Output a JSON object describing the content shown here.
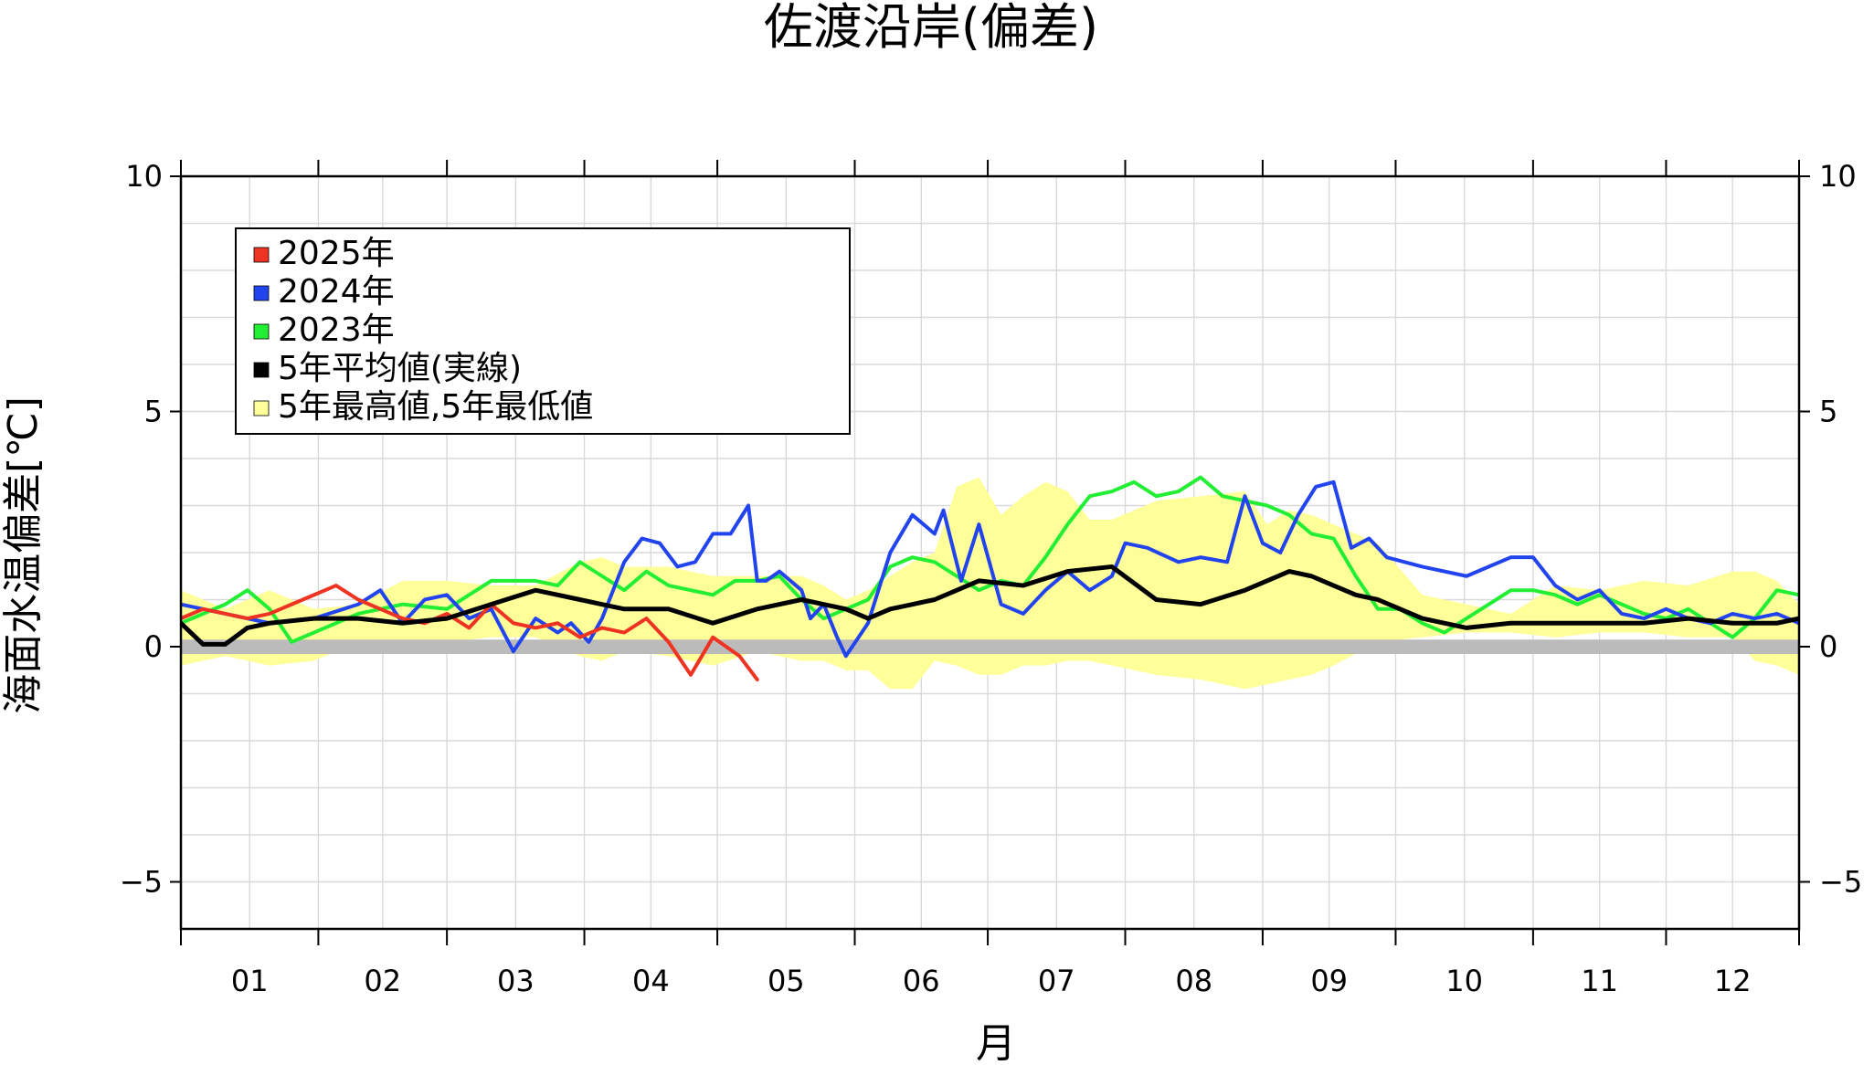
{
  "chart_data": {
    "type": "line",
    "title": "佐渡沿岸(偏差)",
    "xlabel": "月",
    "ylabel": "海面水温偏差[℃]",
    "ylim": [
      -6,
      10
    ],
    "xlim": [
      0,
      365
    ],
    "y_ticks": [
      -5,
      0,
      5,
      10
    ],
    "y_tick_labels": [
      "−5",
      "0",
      "5",
      "10"
    ],
    "month_labels": [
      "01",
      "02",
      "03",
      "04",
      "05",
      "06",
      "07",
      "08",
      "09",
      "10",
      "11",
      "12"
    ],
    "month_starts": [
      0,
      31,
      60,
      91,
      121,
      152,
      182,
      213,
      244,
      274,
      305,
      335,
      365
    ],
    "grid": true,
    "legend_position": "top-left",
    "zero_band": [
      0,
      0.15
    ],
    "colors": {
      "y2025": "#ee3322",
      "y2024": "#2244ee",
      "y2023": "#22ee33",
      "mean": "#000000",
      "range": "#ffff99",
      "zero_band": "#bbbbbb"
    },
    "legend": [
      {
        "label": "2025年",
        "color": "#ee3322"
      },
      {
        "label": "2024年",
        "color": "#2244ee"
      },
      {
        "label": "2023年",
        "color": "#22ee33"
      },
      {
        "label": "5年平均値(実線)",
        "color": "#000000"
      },
      {
        "label": "5年最高値,5年最低値",
        "color": "#ffff99"
      }
    ],
    "series": [
      {
        "name": "2025年",
        "color": "#ee3322",
        "x": [
          0,
          5,
          10,
          15,
          20,
          25,
          30,
          35,
          40,
          45,
          50,
          55,
          60,
          65,
          70,
          75,
          80,
          85,
          90,
          95,
          100,
          105,
          110,
          115,
          120,
          126,
          130
        ],
        "values": [
          0.6,
          0.8,
          0.7,
          0.6,
          0.7,
          0.9,
          1.1,
          1.3,
          1.0,
          0.8,
          0.6,
          0.5,
          0.7,
          0.4,
          0.9,
          0.5,
          0.4,
          0.5,
          0.2,
          0.4,
          0.3,
          0.6,
          0.1,
          -0.6,
          0.2,
          -0.2,
          -0.7
        ]
      },
      {
        "name": "2024年",
        "color": "#2244ee",
        "x": [
          0,
          10,
          20,
          30,
          40,
          45,
          50,
          55,
          60,
          65,
          70,
          75,
          80,
          85,
          88,
          92,
          95,
          100,
          104,
          108,
          112,
          116,
          120,
          124,
          128,
          130,
          132,
          135,
          140,
          142,
          145,
          148,
          150,
          155,
          160,
          165,
          170,
          172,
          176,
          180,
          185,
          190,
          195,
          200,
          205,
          210,
          213,
          218,
          225,
          230,
          236,
          240,
          244,
          248,
          252,
          256,
          260,
          264,
          268,
          272,
          280,
          290,
          300,
          305,
          310,
          315,
          320,
          325,
          330,
          335,
          340,
          345,
          350,
          355,
          360,
          365
        ],
        "values": [
          0.9,
          0.7,
          0.5,
          0.6,
          0.9,
          1.2,
          0.5,
          1.0,
          1.1,
          0.6,
          0.8,
          -0.1,
          0.6,
          0.3,
          0.5,
          0.1,
          0.6,
          1.8,
          2.3,
          2.2,
          1.7,
          1.8,
          2.4,
          2.4,
          3.0,
          1.4,
          1.4,
          1.6,
          1.2,
          0.6,
          0.9,
          0.2,
          -0.2,
          0.5,
          2.0,
          2.8,
          2.4,
          2.9,
          1.4,
          2.6,
          0.9,
          0.7,
          1.2,
          1.6,
          1.2,
          1.5,
          2.2,
          2.1,
          1.8,
          1.9,
          1.8,
          3.2,
          2.2,
          2.0,
          2.8,
          3.4,
          3.5,
          2.1,
          2.3,
          1.9,
          1.7,
          1.5,
          1.9,
          1.9,
          1.3,
          1.0,
          1.2,
          0.7,
          0.6,
          0.8,
          0.6,
          0.5,
          0.7,
          0.6,
          0.7,
          0.5
        ]
      },
      {
        "name": "2023年",
        "color": "#22ee33",
        "x": [
          0,
          10,
          15,
          20,
          25,
          30,
          40,
          50,
          60,
          70,
          80,
          85,
          90,
          95,
          100,
          105,
          110,
          115,
          120,
          125,
          130,
          135,
          140,
          145,
          150,
          155,
          160,
          165,
          170,
          175,
          180,
          185,
          190,
          195,
          200,
          205,
          210,
          215,
          220,
          225,
          230,
          235,
          240,
          245,
          250,
          255,
          260,
          265,
          270,
          275,
          280,
          285,
          290,
          295,
          300,
          305,
          310,
          315,
          320,
          325,
          330,
          335,
          340,
          345,
          350,
          355,
          360,
          365
        ],
        "values": [
          0.5,
          0.9,
          1.2,
          0.8,
          0.1,
          0.3,
          0.7,
          0.9,
          0.8,
          1.4,
          1.4,
          1.3,
          1.8,
          1.5,
          1.2,
          1.6,
          1.3,
          1.2,
          1.1,
          1.4,
          1.4,
          1.5,
          1.0,
          0.6,
          0.8,
          1.0,
          1.7,
          1.9,
          1.8,
          1.5,
          1.2,
          1.4,
          1.3,
          1.9,
          2.6,
          3.2,
          3.3,
          3.5,
          3.2,
          3.3,
          3.6,
          3.2,
          3.1,
          3.0,
          2.8,
          2.4,
          2.3,
          1.5,
          0.8,
          0.8,
          0.5,
          0.3,
          0.6,
          0.9,
          1.2,
          1.2,
          1.1,
          0.9,
          1.1,
          0.9,
          0.7,
          0.6,
          0.8,
          0.5,
          0.2,
          0.6,
          1.2,
          1.1
        ]
      },
      {
        "name": "5年平均値(実線)",
        "color": "#000000",
        "x": [
          0,
          5,
          10,
          15,
          20,
          30,
          40,
          50,
          60,
          70,
          80,
          85,
          90,
          95,
          100,
          110,
          120,
          130,
          140,
          145,
          150,
          155,
          160,
          165,
          170,
          180,
          190,
          200,
          210,
          220,
          230,
          240,
          250,
          255,
          260,
          265,
          270,
          275,
          280,
          290,
          300,
          310,
          320,
          330,
          340,
          350,
          360,
          365
        ],
        "values": [
          0.5,
          0.05,
          0.05,
          0.4,
          0.5,
          0.6,
          0.6,
          0.5,
          0.6,
          0.9,
          1.2,
          1.1,
          1.0,
          0.9,
          0.8,
          0.8,
          0.5,
          0.8,
          1.0,
          0.9,
          0.8,
          0.6,
          0.8,
          0.9,
          1.0,
          1.4,
          1.3,
          1.6,
          1.7,
          1.0,
          0.9,
          1.2,
          1.6,
          1.5,
          1.3,
          1.1,
          1.0,
          0.8,
          0.6,
          0.4,
          0.5,
          0.5,
          0.5,
          0.5,
          0.6,
          0.5,
          0.5,
          0.6
        ]
      }
    ],
    "range_band": {
      "name": "5年最高値,5年最低値",
      "x": [
        0,
        10,
        20,
        30,
        40,
        50,
        60,
        70,
        80,
        90,
        95,
        100,
        110,
        120,
        130,
        140,
        145,
        150,
        155,
        160,
        165,
        170,
        175,
        180,
        185,
        190,
        195,
        200,
        205,
        210,
        220,
        230,
        240,
        245,
        250,
        255,
        260,
        270,
        280,
        290,
        300,
        310,
        320,
        330,
        340,
        350,
        355,
        360,
        365
      ],
      "upper": [
        1.2,
        0.8,
        1.2,
        0.8,
        0.9,
        1.4,
        1.4,
        1.3,
        1.3,
        1.8,
        1.9,
        1.7,
        1.7,
        1.5,
        1.5,
        1.5,
        1.3,
        1.0,
        1.2,
        1.5,
        1.8,
        2.0,
        3.4,
        3.6,
        2.8,
        3.2,
        3.5,
        3.3,
        2.7,
        2.7,
        3.1,
        3.2,
        3.3,
        2.6,
        2.9,
        2.8,
        2.6,
        2.2,
        1.1,
        0.9,
        0.7,
        1.3,
        1.2,
        1.4,
        1.3,
        1.6,
        1.6,
        1.4,
        0.9
      ],
      "lower": [
        -0.4,
        -0.2,
        -0.4,
        -0.3,
        0.1,
        0.0,
        0.1,
        0.2,
        0.2,
        -0.2,
        -0.3,
        -0.1,
        -0.2,
        -0.4,
        -0.1,
        -0.3,
        -0.3,
        -0.5,
        -0.5,
        -0.9,
        -0.9,
        -0.3,
        -0.4,
        -0.6,
        -0.6,
        -0.4,
        -0.4,
        -0.3,
        -0.3,
        -0.4,
        -0.6,
        -0.7,
        -0.9,
        -0.8,
        -0.7,
        -0.6,
        -0.4,
        0.1,
        0.2,
        0.3,
        0.3,
        0.2,
        0.3,
        0.3,
        0.2,
        0.2,
        -0.3,
        -0.4,
        -0.6
      ]
    }
  }
}
